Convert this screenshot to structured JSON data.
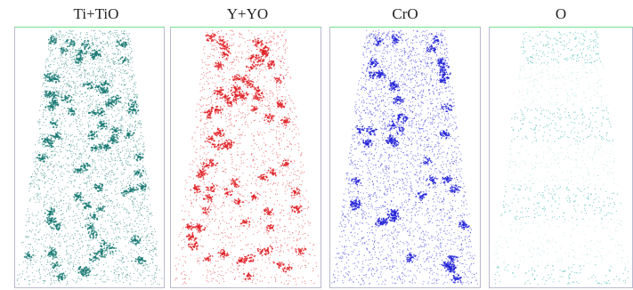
{
  "panels": [
    {
      "label": "Ti+TiO",
      "color": "#1a7a74",
      "density": "high",
      "clusters": "many"
    },
    {
      "label": "Y+YO",
      "color": "#e0262a",
      "density": "medium",
      "clusters": "many"
    },
    {
      "label": "CrO",
      "color": "#2323d8",
      "density": "high",
      "clusters": "some"
    },
    {
      "label": "O",
      "color": "#5cc2bd",
      "density": "low",
      "clusters": "layered"
    }
  ]
}
